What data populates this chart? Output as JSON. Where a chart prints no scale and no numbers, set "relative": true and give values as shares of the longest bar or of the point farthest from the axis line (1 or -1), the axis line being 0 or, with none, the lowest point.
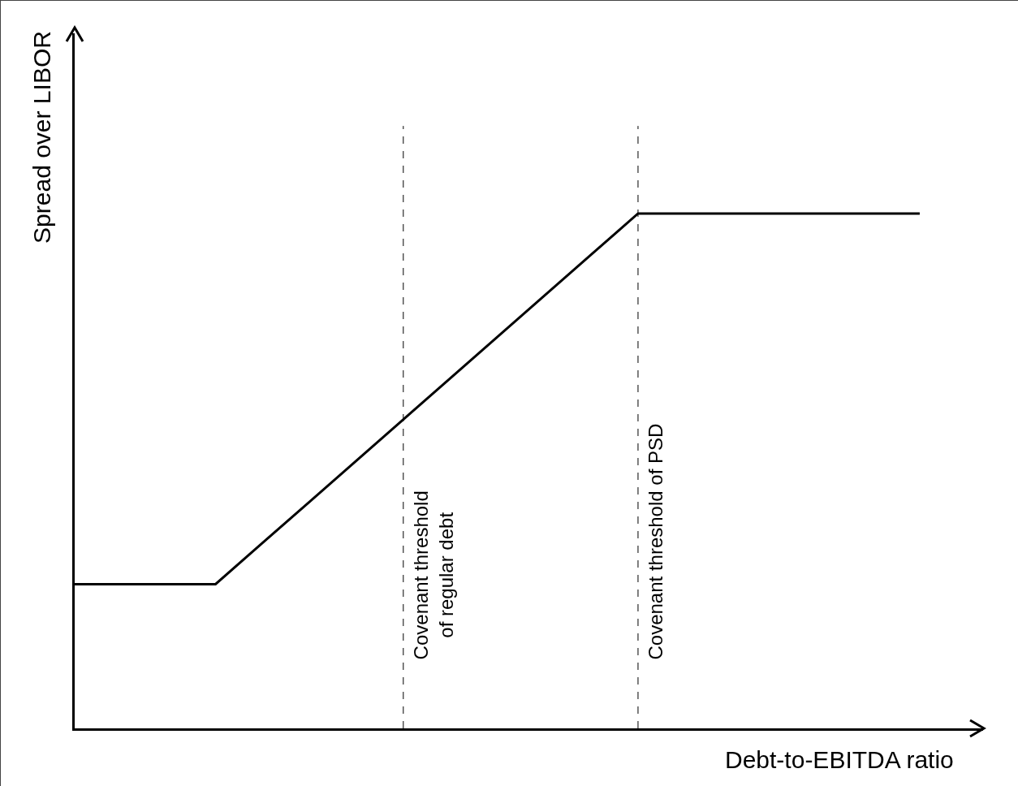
{
  "chart_data": {
    "type": "line",
    "relative": true,
    "xlabel": "Debt-to-EBITDA ratio",
    "ylabel": "Spread over LIBOR",
    "categories": [
      null,
      null,
      null,
      null,
      null,
      null,
      null,
      null,
      null,
      null,
      null,
      null,
      null,
      null,
      null,
      null,
      null,
      null,
      null
    ],
    "marker": "none",
    "line_style": "solid",
    "series": [
      {
        "color": "#000000",
        "values": [
          0.28,
          0.28,
          0.28,
          0.28,
          0.36,
          0.44,
          0.52,
          0.6,
          0.68,
          0.76,
          0.84,
          0.92,
          1,
          1,
          1,
          1,
          1,
          1,
          1
        ]
      }
    ],
    "annotations": [
      "Covenant threshold\nof regular debt",
      "Covenant threshold of PSD"
    ]
  }
}
